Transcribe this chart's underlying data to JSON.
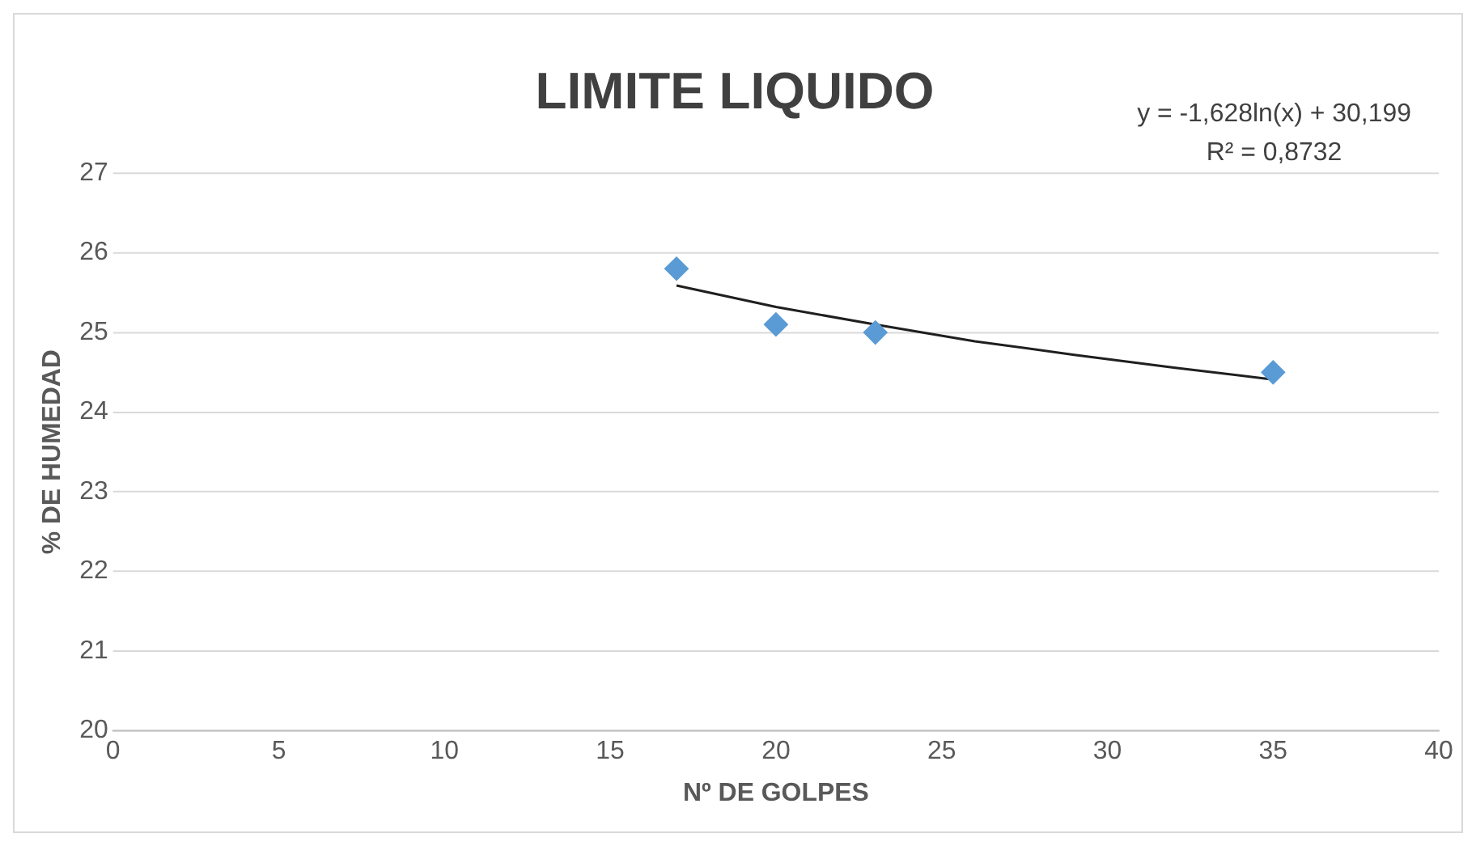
{
  "chart_data": {
    "type": "scatter",
    "title": "LIMITE LIQUIDO",
    "xlabel": "Nº DE GOLPES",
    "ylabel": "% DE HUMEDAD",
    "annotations": [
      "y = -1,628ln(x) + 30,199",
      "R² = 0,8732"
    ],
    "series": [
      {
        "type": "scatter",
        "color": "#5b9bd5",
        "x": [
          17,
          20,
          23,
          35
        ],
        "values": [
          25.8,
          25.1,
          25.0,
          24.5
        ],
        "marker": "diamond"
      },
      {
        "type": "line",
        "color": "#1f1f1f",
        "x": [
          17,
          20,
          23,
          26,
          29,
          32,
          35
        ],
        "values": [
          25.59,
          25.32,
          25.1,
          24.89,
          24.72,
          24.56,
          24.41
        ],
        "marker": "none",
        "line_style": "solid"
      }
    ],
    "xlim": [
      0,
      40
    ],
    "xticks": [
      0,
      5,
      10,
      15,
      20,
      25,
      30,
      35,
      40
    ],
    "ylim": [
      20,
      27
    ],
    "yticks": [
      20,
      21,
      22,
      23,
      24,
      25,
      26,
      27
    ],
    "grid": "y",
    "legend": false
  }
}
